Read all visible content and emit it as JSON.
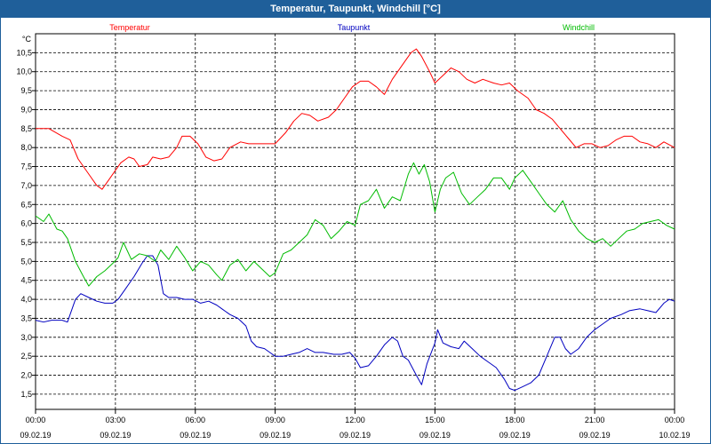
{
  "window": {
    "title": "Temperatur, Taupunkt, Windchill [°C]"
  },
  "chart_data": {
    "type": "line",
    "title": "Temperatur, Taupunkt, Windchill [°C]",
    "yunit": "°C",
    "ylim": [
      1.1,
      11.0
    ],
    "yticks": [
      "1,5",
      "2,0",
      "2,5",
      "3,0",
      "3,5",
      "4,0",
      "4,5",
      "5,0",
      "5,5",
      "6,0",
      "6,5",
      "7,0",
      "7,5",
      "8,0",
      "8,5",
      "9,0",
      "9,5",
      "10,0",
      "10,5"
    ],
    "ytick_values": [
      1.5,
      2.0,
      2.5,
      3.0,
      3.5,
      4.0,
      4.5,
      5.0,
      5.5,
      6.0,
      6.5,
      7.0,
      7.5,
      8.0,
      8.5,
      9.0,
      9.5,
      10.0,
      10.5
    ],
    "xlim": [
      0,
      24
    ],
    "xticks": [
      {
        "h": 0,
        "time": "00:00",
        "date": "09.02.19"
      },
      {
        "h": 3,
        "time": "03:00",
        "date": "09.02.19"
      },
      {
        "h": 6,
        "time": "06:00",
        "date": "09.02.19"
      },
      {
        "h": 9,
        "time": "09:00",
        "date": "09.02.19"
      },
      {
        "h": 12,
        "time": "12:00",
        "date": "09.02.19"
      },
      {
        "h": 15,
        "time": "15:00",
        "date": "09.02.19"
      },
      {
        "h": 18,
        "time": "18:00",
        "date": "09.02.19"
      },
      {
        "h": 21,
        "time": "21:00",
        "date": "09.02.19"
      },
      {
        "h": 24,
        "time": "00:00",
        "date": "10.02.19"
      }
    ],
    "grid": true,
    "legend": "top",
    "series": [
      {
        "name": "Temperatur",
        "color": "#ff0000",
        "points": [
          [
            0,
            8.5
          ],
          [
            0.5,
            8.5
          ],
          [
            1,
            8.3
          ],
          [
            1.3,
            8.2
          ],
          [
            1.6,
            7.7
          ],
          [
            2.0,
            7.3
          ],
          [
            2.3,
            7.0
          ],
          [
            2.5,
            6.9
          ],
          [
            2.8,
            7.2
          ],
          [
            3.0,
            7.4
          ],
          [
            3.2,
            7.6
          ],
          [
            3.5,
            7.75
          ],
          [
            3.7,
            7.7
          ],
          [
            3.9,
            7.5
          ],
          [
            4.2,
            7.55
          ],
          [
            4.4,
            7.75
          ],
          [
            4.7,
            7.7
          ],
          [
            5.0,
            7.75
          ],
          [
            5.3,
            8.0
          ],
          [
            5.5,
            8.3
          ],
          [
            5.8,
            8.3
          ],
          [
            6.1,
            8.1
          ],
          [
            6.4,
            7.75
          ],
          [
            6.7,
            7.65
          ],
          [
            7.0,
            7.7
          ],
          [
            7.3,
            8.0
          ],
          [
            7.7,
            8.15
          ],
          [
            8.0,
            8.1
          ],
          [
            8.5,
            8.1
          ],
          [
            9.0,
            8.1
          ],
          [
            9.4,
            8.4
          ],
          [
            9.7,
            8.7
          ],
          [
            10.0,
            8.9
          ],
          [
            10.3,
            8.85
          ],
          [
            10.6,
            8.7
          ],
          [
            11.0,
            8.8
          ],
          [
            11.3,
            9.0
          ],
          [
            11.6,
            9.3
          ],
          [
            11.9,
            9.6
          ],
          [
            12.2,
            9.75
          ],
          [
            12.5,
            9.75
          ],
          [
            12.8,
            9.6
          ],
          [
            13.1,
            9.4
          ],
          [
            13.4,
            9.8
          ],
          [
            13.8,
            10.2
          ],
          [
            14.1,
            10.5
          ],
          [
            14.3,
            10.6
          ],
          [
            14.5,
            10.4
          ],
          [
            14.8,
            10.0
          ],
          [
            15.0,
            9.7
          ],
          [
            15.3,
            9.9
          ],
          [
            15.6,
            10.1
          ],
          [
            15.9,
            10.0
          ],
          [
            16.2,
            9.8
          ],
          [
            16.5,
            9.7
          ],
          [
            16.8,
            9.8
          ],
          [
            17.2,
            9.7
          ],
          [
            17.5,
            9.65
          ],
          [
            17.8,
            9.7
          ],
          [
            18.1,
            9.5
          ],
          [
            18.5,
            9.3
          ],
          [
            18.8,
            9.0
          ],
          [
            19.1,
            8.9
          ],
          [
            19.4,
            8.75
          ],
          [
            19.7,
            8.5
          ],
          [
            20.0,
            8.25
          ],
          [
            20.3,
            8.0
          ],
          [
            20.6,
            8.1
          ],
          [
            20.9,
            8.1
          ],
          [
            21.2,
            8.0
          ],
          [
            21.5,
            8.05
          ],
          [
            21.8,
            8.2
          ],
          [
            22.1,
            8.3
          ],
          [
            22.4,
            8.3
          ],
          [
            22.7,
            8.15
          ],
          [
            23.0,
            8.1
          ],
          [
            23.3,
            8.0
          ],
          [
            23.6,
            8.15
          ],
          [
            24.0,
            8.0
          ]
        ]
      },
      {
        "name": "Taupunkt",
        "color": "#0000c0",
        "points": [
          [
            0,
            3.45
          ],
          [
            0.3,
            3.4
          ],
          [
            0.6,
            3.45
          ],
          [
            1.0,
            3.45
          ],
          [
            1.2,
            3.4
          ],
          [
            1.5,
            4.0
          ],
          [
            1.7,
            4.15
          ],
          [
            2.0,
            4.05
          ],
          [
            2.3,
            3.95
          ],
          [
            2.6,
            3.9
          ],
          [
            2.9,
            3.9
          ],
          [
            3.1,
            4.0
          ],
          [
            3.4,
            4.3
          ],
          [
            3.7,
            4.6
          ],
          [
            4.0,
            4.95
          ],
          [
            4.2,
            5.15
          ],
          [
            4.4,
            5.15
          ],
          [
            4.6,
            4.9
          ],
          [
            4.8,
            4.15
          ],
          [
            5.0,
            4.05
          ],
          [
            5.3,
            4.05
          ],
          [
            5.6,
            4.0
          ],
          [
            5.9,
            4.0
          ],
          [
            6.2,
            3.9
          ],
          [
            6.5,
            3.95
          ],
          [
            6.8,
            3.85
          ],
          [
            7.0,
            3.75
          ],
          [
            7.3,
            3.6
          ],
          [
            7.6,
            3.5
          ],
          [
            7.9,
            3.3
          ],
          [
            8.1,
            2.9
          ],
          [
            8.3,
            2.75
          ],
          [
            8.6,
            2.7
          ],
          [
            8.8,
            2.6
          ],
          [
            9.0,
            2.5
          ],
          [
            9.3,
            2.5
          ],
          [
            9.6,
            2.55
          ],
          [
            9.9,
            2.6
          ],
          [
            10.2,
            2.7
          ],
          [
            10.5,
            2.6
          ],
          [
            10.8,
            2.6
          ],
          [
            11.2,
            2.55
          ],
          [
            11.5,
            2.55
          ],
          [
            11.8,
            2.6
          ],
          [
            12.0,
            2.45
          ],
          [
            12.2,
            2.2
          ],
          [
            12.5,
            2.25
          ],
          [
            12.8,
            2.5
          ],
          [
            13.1,
            2.8
          ],
          [
            13.4,
            3.0
          ],
          [
            13.6,
            2.9
          ],
          [
            13.8,
            2.5
          ],
          [
            14.0,
            2.4
          ],
          [
            14.3,
            2.0
          ],
          [
            14.5,
            1.75
          ],
          [
            14.7,
            2.3
          ],
          [
            15.0,
            2.85
          ],
          [
            15.1,
            3.2
          ],
          [
            15.3,
            2.85
          ],
          [
            15.6,
            2.75
          ],
          [
            15.9,
            2.7
          ],
          [
            16.1,
            2.9
          ],
          [
            16.4,
            2.7
          ],
          [
            16.7,
            2.5
          ],
          [
            17.0,
            2.35
          ],
          [
            17.3,
            2.2
          ],
          [
            17.6,
            1.9
          ],
          [
            17.8,
            1.65
          ],
          [
            18.0,
            1.6
          ],
          [
            18.3,
            1.7
          ],
          [
            18.6,
            1.8
          ],
          [
            18.9,
            2.0
          ],
          [
            19.2,
            2.5
          ],
          [
            19.5,
            3.0
          ],
          [
            19.7,
            3.0
          ],
          [
            19.9,
            2.7
          ],
          [
            20.1,
            2.55
          ],
          [
            20.4,
            2.7
          ],
          [
            20.7,
            3.0
          ],
          [
            21.0,
            3.2
          ],
          [
            21.3,
            3.35
          ],
          [
            21.6,
            3.5
          ],
          [
            22.0,
            3.6
          ],
          [
            22.3,
            3.7
          ],
          [
            22.7,
            3.75
          ],
          [
            23.0,
            3.7
          ],
          [
            23.3,
            3.65
          ],
          [
            23.6,
            3.9
          ],
          [
            23.8,
            4.0
          ],
          [
            24.0,
            3.95
          ]
        ]
      },
      {
        "name": "Windchill",
        "color": "#00bb00",
        "points": [
          [
            0,
            6.2
          ],
          [
            0.3,
            6.05
          ],
          [
            0.5,
            6.25
          ],
          [
            0.8,
            5.85
          ],
          [
            1.0,
            5.8
          ],
          [
            1.2,
            5.6
          ],
          [
            1.5,
            5.0
          ],
          [
            1.8,
            4.6
          ],
          [
            2.0,
            4.35
          ],
          [
            2.3,
            4.6
          ],
          [
            2.6,
            4.75
          ],
          [
            2.9,
            4.95
          ],
          [
            3.1,
            5.1
          ],
          [
            3.3,
            5.5
          ],
          [
            3.6,
            5.05
          ],
          [
            3.9,
            5.2
          ],
          [
            4.2,
            5.15
          ],
          [
            4.5,
            5.0
          ],
          [
            4.7,
            5.3
          ],
          [
            5.0,
            5.05
          ],
          [
            5.3,
            5.4
          ],
          [
            5.6,
            5.1
          ],
          [
            5.9,
            4.75
          ],
          [
            6.2,
            5.0
          ],
          [
            6.5,
            4.9
          ],
          [
            6.8,
            4.65
          ],
          [
            7.0,
            4.5
          ],
          [
            7.3,
            4.9
          ],
          [
            7.6,
            5.05
          ],
          [
            7.9,
            4.75
          ],
          [
            8.2,
            5.0
          ],
          [
            8.5,
            4.8
          ],
          [
            8.8,
            4.6
          ],
          [
            9.0,
            4.7
          ],
          [
            9.3,
            5.2
          ],
          [
            9.6,
            5.3
          ],
          [
            9.9,
            5.5
          ],
          [
            10.2,
            5.7
          ],
          [
            10.5,
            6.1
          ],
          [
            10.8,
            5.95
          ],
          [
            11.1,
            5.6
          ],
          [
            11.4,
            5.8
          ],
          [
            11.7,
            6.05
          ],
          [
            12.0,
            5.95
          ],
          [
            12.2,
            6.5
          ],
          [
            12.5,
            6.6
          ],
          [
            12.8,
            6.9
          ],
          [
            13.1,
            6.4
          ],
          [
            13.4,
            6.7
          ],
          [
            13.7,
            6.6
          ],
          [
            14.0,
            7.3
          ],
          [
            14.2,
            7.6
          ],
          [
            14.4,
            7.3
          ],
          [
            14.6,
            7.55
          ],
          [
            14.8,
            7.1
          ],
          [
            15.0,
            6.3
          ],
          [
            15.2,
            6.9
          ],
          [
            15.4,
            7.2
          ],
          [
            15.7,
            7.35
          ],
          [
            16.0,
            6.8
          ],
          [
            16.3,
            6.5
          ],
          [
            16.6,
            6.7
          ],
          [
            16.9,
            6.9
          ],
          [
            17.2,
            7.2
          ],
          [
            17.5,
            7.2
          ],
          [
            17.8,
            6.9
          ],
          [
            18.0,
            7.2
          ],
          [
            18.3,
            7.4
          ],
          [
            18.6,
            7.1
          ],
          [
            18.9,
            6.8
          ],
          [
            19.2,
            6.5
          ],
          [
            19.5,
            6.3
          ],
          [
            19.8,
            6.6
          ],
          [
            20.1,
            6.1
          ],
          [
            20.4,
            5.8
          ],
          [
            20.7,
            5.6
          ],
          [
            21.0,
            5.5
          ],
          [
            21.3,
            5.6
          ],
          [
            21.6,
            5.4
          ],
          [
            21.9,
            5.6
          ],
          [
            22.2,
            5.8
          ],
          [
            22.5,
            5.85
          ],
          [
            22.8,
            6.0
          ],
          [
            23.1,
            6.05
          ],
          [
            23.4,
            6.1
          ],
          [
            23.7,
            5.95
          ],
          [
            24.0,
            5.85
          ]
        ]
      }
    ]
  }
}
